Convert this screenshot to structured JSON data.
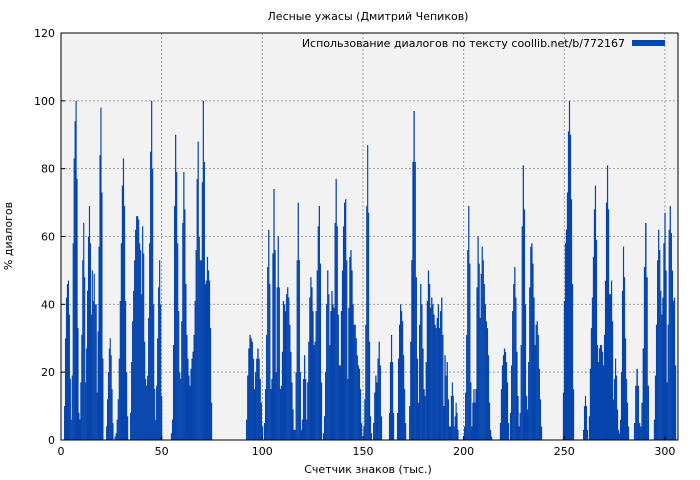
{
  "chart_data": {
    "type": "bar",
    "title": "Лесные ужасы (Дмитрий Чепиков)",
    "xlabel": "Счетчик знаков (тыс.)",
    "ylabel": "% диалогов",
    "xlim": [
      0,
      306.5
    ],
    "ylim": [
      0,
      120
    ],
    "xticks": [
      0,
      50,
      100,
      150,
      200,
      250,
      300
    ],
    "yticks": [
      0,
      20,
      40,
      60,
      80,
      100,
      120
    ],
    "grid": true,
    "legend": {
      "placement": "top-right",
      "entries": [
        "Использование диалогов по тексту coollib.net/b/772167"
      ]
    },
    "colors": {
      "bar": "#0645ad",
      "plot_bg": "#f2f2f2",
      "grid": "#a0a0a0"
    },
    "series": [
      {
        "name": "Использование диалогов по тексту coollib.net/b/772167",
        "segments": [
          {
            "from": 1.5,
            "to": 21,
            "values": [
              10,
              30,
              42,
              46,
              47,
              37,
              18,
              6,
              19,
              58,
              83,
              94,
              100,
              77,
              33,
              8,
              6,
              17,
              31,
              53,
              64,
              48,
              17,
              27,
              44,
              60,
              69,
              58,
              37,
              50,
              41,
              49,
              40,
              40,
              14,
              32,
              57,
              84,
              98,
              73,
              24
            ]
          },
          {
            "from": 22.4,
            "to": 26,
            "values": [
              4,
              12,
              20,
              27,
              30,
              25,
              15,
              5
            ]
          },
          {
            "from": 26.6,
            "to": 33.3,
            "values": [
              1,
              2,
              6,
              12,
              24,
              41,
              58,
              75,
              83,
              69,
              41,
              20,
              7
            ]
          },
          {
            "from": 34.3,
            "to": 50.2,
            "values": [
              8,
              23,
              35,
              44,
              53,
              62,
              66,
              66,
              65,
              58,
              56,
              43,
              63,
              55,
              29,
              18,
              16,
              19,
              36,
              58,
              85,
              100,
              80,
              40,
              15,
              6,
              16,
              30,
              45,
              53,
              40,
              13
            ]
          },
          {
            "from": 54.6,
            "to": 75,
            "values": [
              2,
              6,
              28,
              69,
              90,
              79,
              58,
              38,
              20,
              18,
              35,
              64,
              79,
              68,
              46,
              31,
              24,
              19,
              16,
              21,
              24,
              26,
              31,
              41,
              56,
              77,
              88,
              60,
              53,
              53,
              76,
              100,
              82,
              46,
              47,
              54,
              50,
              47,
              33,
              11
            ]
          },
          {
            "from": 91.9,
            "to": 100.3,
            "values": [
              6,
              19,
              27,
              31,
              30,
              29,
              24,
              15,
              20,
              24,
              27,
              24,
              18,
              11,
              4
            ]
          },
          {
            "from": 100.8,
            "to": 129.6,
            "values": [
              5,
              15,
              31,
              51,
              62,
              46,
              15,
              18,
              55,
              74,
              56,
              20,
              45,
              60,
              45,
              15,
              16,
              26,
              41,
              40,
              38,
              43,
              45,
              42,
              34,
              26,
              17,
              9,
              3,
              3,
              20,
              53,
              70,
              53,
              20,
              3,
              6,
              18,
              25,
              18,
              6,
              17,
              29,
              42,
              48,
              45,
              38,
              28,
              29,
              38,
              50,
              63,
              69,
              52,
              17
            ]
          },
          {
            "from": 130.1,
            "to": 149.5,
            "values": [
              2,
              7,
              20,
              40,
              50,
              43,
              28,
              38,
              44,
              40,
              39,
              64,
              77,
              63,
              37,
              22,
              22,
              38,
              50,
              63,
              70,
              71,
              53,
              18,
              39,
              54,
              56,
              50,
              40,
              34,
              34,
              30,
              25,
              22,
              21,
              15,
              5
            ]
          },
          {
            "from": 150.2,
            "to": 154.4,
            "values": [
              4,
              12,
              34,
              69,
              87,
              67,
              29,
              7,
              2
            ]
          },
          {
            "from": 155,
            "to": 159.4,
            "values": [
              5,
              14,
              19,
              17,
              24,
              29,
              22,
              7
            ]
          },
          {
            "from": 162.9,
            "to": 165.4,
            "values": [
              8,
              23,
              31,
              23,
              8
            ]
          },
          {
            "from": 166.9,
            "to": 171.4,
            "values": [
              8,
              24,
              34,
              40,
              38,
              35,
              25,
              15,
              5
            ]
          },
          {
            "from": 172.9,
            "to": 193.2,
            "values": [
              10,
              29,
              53,
              82,
              97,
              82,
              48,
              24,
              11,
              34,
              46,
              40,
              27,
              15,
              13,
              23,
              41,
              50,
              46,
              39,
              42,
              40,
              37,
              34,
              33,
              36,
              40,
              33,
              38,
              42,
              31,
              10,
              25,
              19,
              23,
              12,
              4
            ]
          },
          {
            "from": 193.2,
            "to": 197.4,
            "values": [
              4,
              13,
              17,
              13,
              4,
              7,
              11,
              8,
              3
            ]
          },
          {
            "from": 200.2,
            "to": 214.1,
            "values": [
              4,
              14,
              31,
              56,
              69,
              52,
              17,
              4,
              11,
              15,
              11,
              15,
              45,
              60,
              52,
              36,
              49,
              57,
              53,
              46,
              40,
              35,
              33,
              25,
              11,
              3,
              1
            ]
          },
          {
            "from": 218,
            "to": 222.5,
            "values": [
              5,
              15,
              22,
              25,
              27,
              26,
              23,
              17,
              5
            ]
          },
          {
            "from": 223,
            "to": 238.9,
            "values": [
              8,
              22,
              38,
              46,
              51,
              42,
              26,
              13,
              4,
              8,
              28,
              63,
              81,
              68,
              40,
              13,
              9,
              23,
              45,
              57,
              58,
              52,
              42,
              28,
              34,
              35,
              31,
              21,
              12,
              4
            ]
          },
          {
            "from": 249.3,
            "to": 254.8,
            "values": [
              14,
              41,
              58,
              62,
              73,
              91,
              100,
              90,
              71,
              46,
              15
            ]
          },
          {
            "from": 259.3,
            "to": 261.7,
            "values": [
              3,
              10,
              13,
              10,
              3
            ]
          },
          {
            "from": 262.2,
            "to": 274.2,
            "values": [
              7,
              21,
              33,
              42,
              54,
              68,
              75,
              59,
              28,
              23,
              27,
              28,
              28,
              26,
              22,
              31,
              47,
              70,
              81,
              68,
              43,
              43,
              47,
              35
            ]
          },
          {
            "from": 274.2,
            "to": 282.1,
            "values": [
              12,
              18,
              24,
              19,
              9,
              3,
              2,
              6,
              20,
              44,
              57,
              48,
              30,
              18,
              11,
              4
            ]
          },
          {
            "from": 284.6,
            "to": 292,
            "values": [
              5,
              16,
              21,
              16,
              5,
              4,
              11,
              27,
              51,
              64,
              48,
              16
            ]
          },
          {
            "from": 294.5,
            "to": 305.5,
            "values": [
              6,
              19,
              34,
              53,
              62,
              56,
              44,
              37,
              42,
              58,
              67,
              50,
              17,
              34,
              62,
              69,
              61,
              50,
              41,
              42,
              22
            ]
          }
        ]
      }
    ]
  }
}
